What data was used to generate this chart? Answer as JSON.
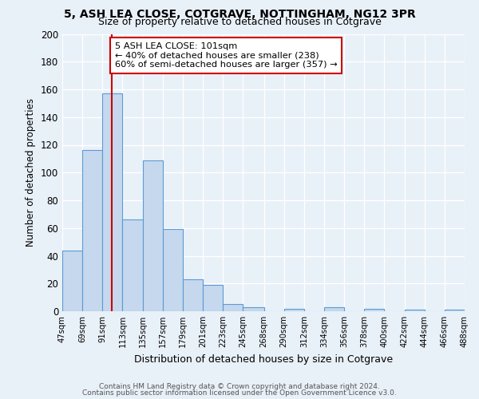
{
  "title1": "5, ASH LEA CLOSE, COTGRAVE, NOTTINGHAM, NG12 3PR",
  "title2": "Size of property relative to detached houses in Cotgrave",
  "xlabel": "Distribution of detached houses by size in Cotgrave",
  "ylabel": "Number of detached properties",
  "bar_vals": [
    44,
    116,
    157,
    66,
    109,
    59,
    23,
    19,
    5,
    3,
    0,
    2,
    0,
    3,
    0,
    2,
    0,
    1,
    0,
    1
  ],
  "bin_edges": [
    47,
    69,
    91,
    113,
    135,
    157,
    179,
    201,
    223,
    245,
    268,
    290,
    312,
    334,
    356,
    378,
    400,
    422,
    444,
    466,
    488
  ],
  "tick_labels": [
    "47sqm",
    "69sqm",
    "91sqm",
    "113sqm",
    "135sqm",
    "157sqm",
    "179sqm",
    "201sqm",
    "223sqm",
    "245sqm",
    "268sqm",
    "290sqm",
    "312sqm",
    "334sqm",
    "356sqm",
    "378sqm",
    "400sqm",
    "422sqm",
    "444sqm",
    "466sqm",
    "488sqm"
  ],
  "bar_color": "#c5d8ed",
  "bar_edge_color": "#5b9bd5",
  "vline_x": 101,
  "vline_color": "#cc0000",
  "ylim": [
    0,
    200
  ],
  "yticks": [
    0,
    20,
    40,
    60,
    80,
    100,
    120,
    140,
    160,
    180,
    200
  ],
  "annotation_title": "5 ASH LEA CLOSE: 101sqm",
  "annotation_line1": "← 40% of detached houses are smaller (238)",
  "annotation_line2": "60% of semi-detached houses are larger (357) →",
  "footer1": "Contains HM Land Registry data © Crown copyright and database right 2024.",
  "footer2": "Contains public sector information licensed under the Open Government Licence v3.0.",
  "bg_color": "#e8f0f8",
  "grid_color": "#ffffff",
  "box_edge_color": "#cc0000"
}
